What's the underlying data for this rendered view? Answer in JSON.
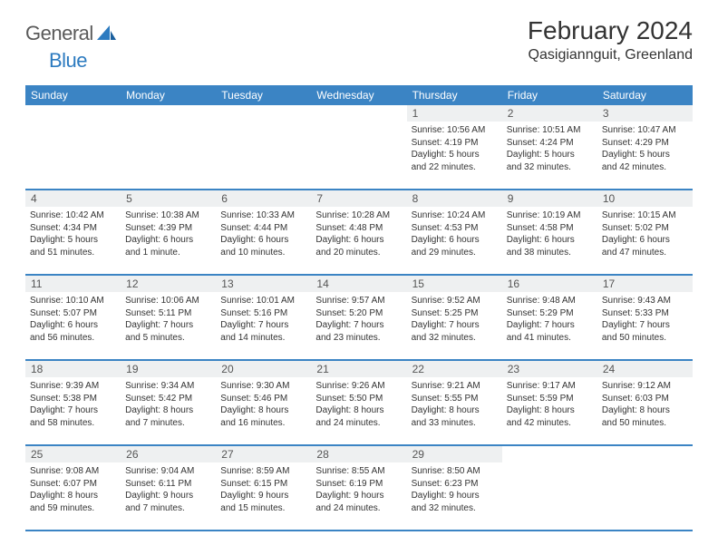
{
  "logo": {
    "part1": "General",
    "part2": "Blue"
  },
  "title": "February 2024",
  "location": "Qasigiannguit, Greenland",
  "colors": {
    "header_bg": "#3b84c4",
    "header_text": "#ffffff",
    "daynum_bg": "#eef0f1",
    "border": "#3b84c4",
    "logo_gray": "#5a5a5a",
    "logo_blue": "#2d7bc0"
  },
  "day_names": [
    "Sunday",
    "Monday",
    "Tuesday",
    "Wednesday",
    "Thursday",
    "Friday",
    "Saturday"
  ],
  "weeks": [
    {
      "nums": [
        "",
        "",
        "",
        "",
        "1",
        "2",
        "3"
      ],
      "cells": [
        {
          "l1": "",
          "l2": "",
          "l3": "",
          "l4": ""
        },
        {
          "l1": "",
          "l2": "",
          "l3": "",
          "l4": ""
        },
        {
          "l1": "",
          "l2": "",
          "l3": "",
          "l4": ""
        },
        {
          "l1": "",
          "l2": "",
          "l3": "",
          "l4": ""
        },
        {
          "l1": "Sunrise: 10:56 AM",
          "l2": "Sunset: 4:19 PM",
          "l3": "Daylight: 5 hours",
          "l4": "and 22 minutes."
        },
        {
          "l1": "Sunrise: 10:51 AM",
          "l2": "Sunset: 4:24 PM",
          "l3": "Daylight: 5 hours",
          "l4": "and 32 minutes."
        },
        {
          "l1": "Sunrise: 10:47 AM",
          "l2": "Sunset: 4:29 PM",
          "l3": "Daylight: 5 hours",
          "l4": "and 42 minutes."
        }
      ]
    },
    {
      "nums": [
        "4",
        "5",
        "6",
        "7",
        "8",
        "9",
        "10"
      ],
      "cells": [
        {
          "l1": "Sunrise: 10:42 AM",
          "l2": "Sunset: 4:34 PM",
          "l3": "Daylight: 5 hours",
          "l4": "and 51 minutes."
        },
        {
          "l1": "Sunrise: 10:38 AM",
          "l2": "Sunset: 4:39 PM",
          "l3": "Daylight: 6 hours",
          "l4": "and 1 minute."
        },
        {
          "l1": "Sunrise: 10:33 AM",
          "l2": "Sunset: 4:44 PM",
          "l3": "Daylight: 6 hours",
          "l4": "and 10 minutes."
        },
        {
          "l1": "Sunrise: 10:28 AM",
          "l2": "Sunset: 4:48 PM",
          "l3": "Daylight: 6 hours",
          "l4": "and 20 minutes."
        },
        {
          "l1": "Sunrise: 10:24 AM",
          "l2": "Sunset: 4:53 PM",
          "l3": "Daylight: 6 hours",
          "l4": "and 29 minutes."
        },
        {
          "l1": "Sunrise: 10:19 AM",
          "l2": "Sunset: 4:58 PM",
          "l3": "Daylight: 6 hours",
          "l4": "and 38 minutes."
        },
        {
          "l1": "Sunrise: 10:15 AM",
          "l2": "Sunset: 5:02 PM",
          "l3": "Daylight: 6 hours",
          "l4": "and 47 minutes."
        }
      ]
    },
    {
      "nums": [
        "11",
        "12",
        "13",
        "14",
        "15",
        "16",
        "17"
      ],
      "cells": [
        {
          "l1": "Sunrise: 10:10 AM",
          "l2": "Sunset: 5:07 PM",
          "l3": "Daylight: 6 hours",
          "l4": "and 56 minutes."
        },
        {
          "l1": "Sunrise: 10:06 AM",
          "l2": "Sunset: 5:11 PM",
          "l3": "Daylight: 7 hours",
          "l4": "and 5 minutes."
        },
        {
          "l1": "Sunrise: 10:01 AM",
          "l2": "Sunset: 5:16 PM",
          "l3": "Daylight: 7 hours",
          "l4": "and 14 minutes."
        },
        {
          "l1": "Sunrise: 9:57 AM",
          "l2": "Sunset: 5:20 PM",
          "l3": "Daylight: 7 hours",
          "l4": "and 23 minutes."
        },
        {
          "l1": "Sunrise: 9:52 AM",
          "l2": "Sunset: 5:25 PM",
          "l3": "Daylight: 7 hours",
          "l4": "and 32 minutes."
        },
        {
          "l1": "Sunrise: 9:48 AM",
          "l2": "Sunset: 5:29 PM",
          "l3": "Daylight: 7 hours",
          "l4": "and 41 minutes."
        },
        {
          "l1": "Sunrise: 9:43 AM",
          "l2": "Sunset: 5:33 PM",
          "l3": "Daylight: 7 hours",
          "l4": "and 50 minutes."
        }
      ]
    },
    {
      "nums": [
        "18",
        "19",
        "20",
        "21",
        "22",
        "23",
        "24"
      ],
      "cells": [
        {
          "l1": "Sunrise: 9:39 AM",
          "l2": "Sunset: 5:38 PM",
          "l3": "Daylight: 7 hours",
          "l4": "and 58 minutes."
        },
        {
          "l1": "Sunrise: 9:34 AM",
          "l2": "Sunset: 5:42 PM",
          "l3": "Daylight: 8 hours",
          "l4": "and 7 minutes."
        },
        {
          "l1": "Sunrise: 9:30 AM",
          "l2": "Sunset: 5:46 PM",
          "l3": "Daylight: 8 hours",
          "l4": "and 16 minutes."
        },
        {
          "l1": "Sunrise: 9:26 AM",
          "l2": "Sunset: 5:50 PM",
          "l3": "Daylight: 8 hours",
          "l4": "and 24 minutes."
        },
        {
          "l1": "Sunrise: 9:21 AM",
          "l2": "Sunset: 5:55 PM",
          "l3": "Daylight: 8 hours",
          "l4": "and 33 minutes."
        },
        {
          "l1": "Sunrise: 9:17 AM",
          "l2": "Sunset: 5:59 PM",
          "l3": "Daylight: 8 hours",
          "l4": "and 42 minutes."
        },
        {
          "l1": "Sunrise: 9:12 AM",
          "l2": "Sunset: 6:03 PM",
          "l3": "Daylight: 8 hours",
          "l4": "and 50 minutes."
        }
      ]
    },
    {
      "nums": [
        "25",
        "26",
        "27",
        "28",
        "29",
        "",
        ""
      ],
      "cells": [
        {
          "l1": "Sunrise: 9:08 AM",
          "l2": "Sunset: 6:07 PM",
          "l3": "Daylight: 8 hours",
          "l4": "and 59 minutes."
        },
        {
          "l1": "Sunrise: 9:04 AM",
          "l2": "Sunset: 6:11 PM",
          "l3": "Daylight: 9 hours",
          "l4": "and 7 minutes."
        },
        {
          "l1": "Sunrise: 8:59 AM",
          "l2": "Sunset: 6:15 PM",
          "l3": "Daylight: 9 hours",
          "l4": "and 15 minutes."
        },
        {
          "l1": "Sunrise: 8:55 AM",
          "l2": "Sunset: 6:19 PM",
          "l3": "Daylight: 9 hours",
          "l4": "and 24 minutes."
        },
        {
          "l1": "Sunrise: 8:50 AM",
          "l2": "Sunset: 6:23 PM",
          "l3": "Daylight: 9 hours",
          "l4": "and 32 minutes."
        },
        {
          "l1": "",
          "l2": "",
          "l3": "",
          "l4": ""
        },
        {
          "l1": "",
          "l2": "",
          "l3": "",
          "l4": ""
        }
      ]
    }
  ]
}
